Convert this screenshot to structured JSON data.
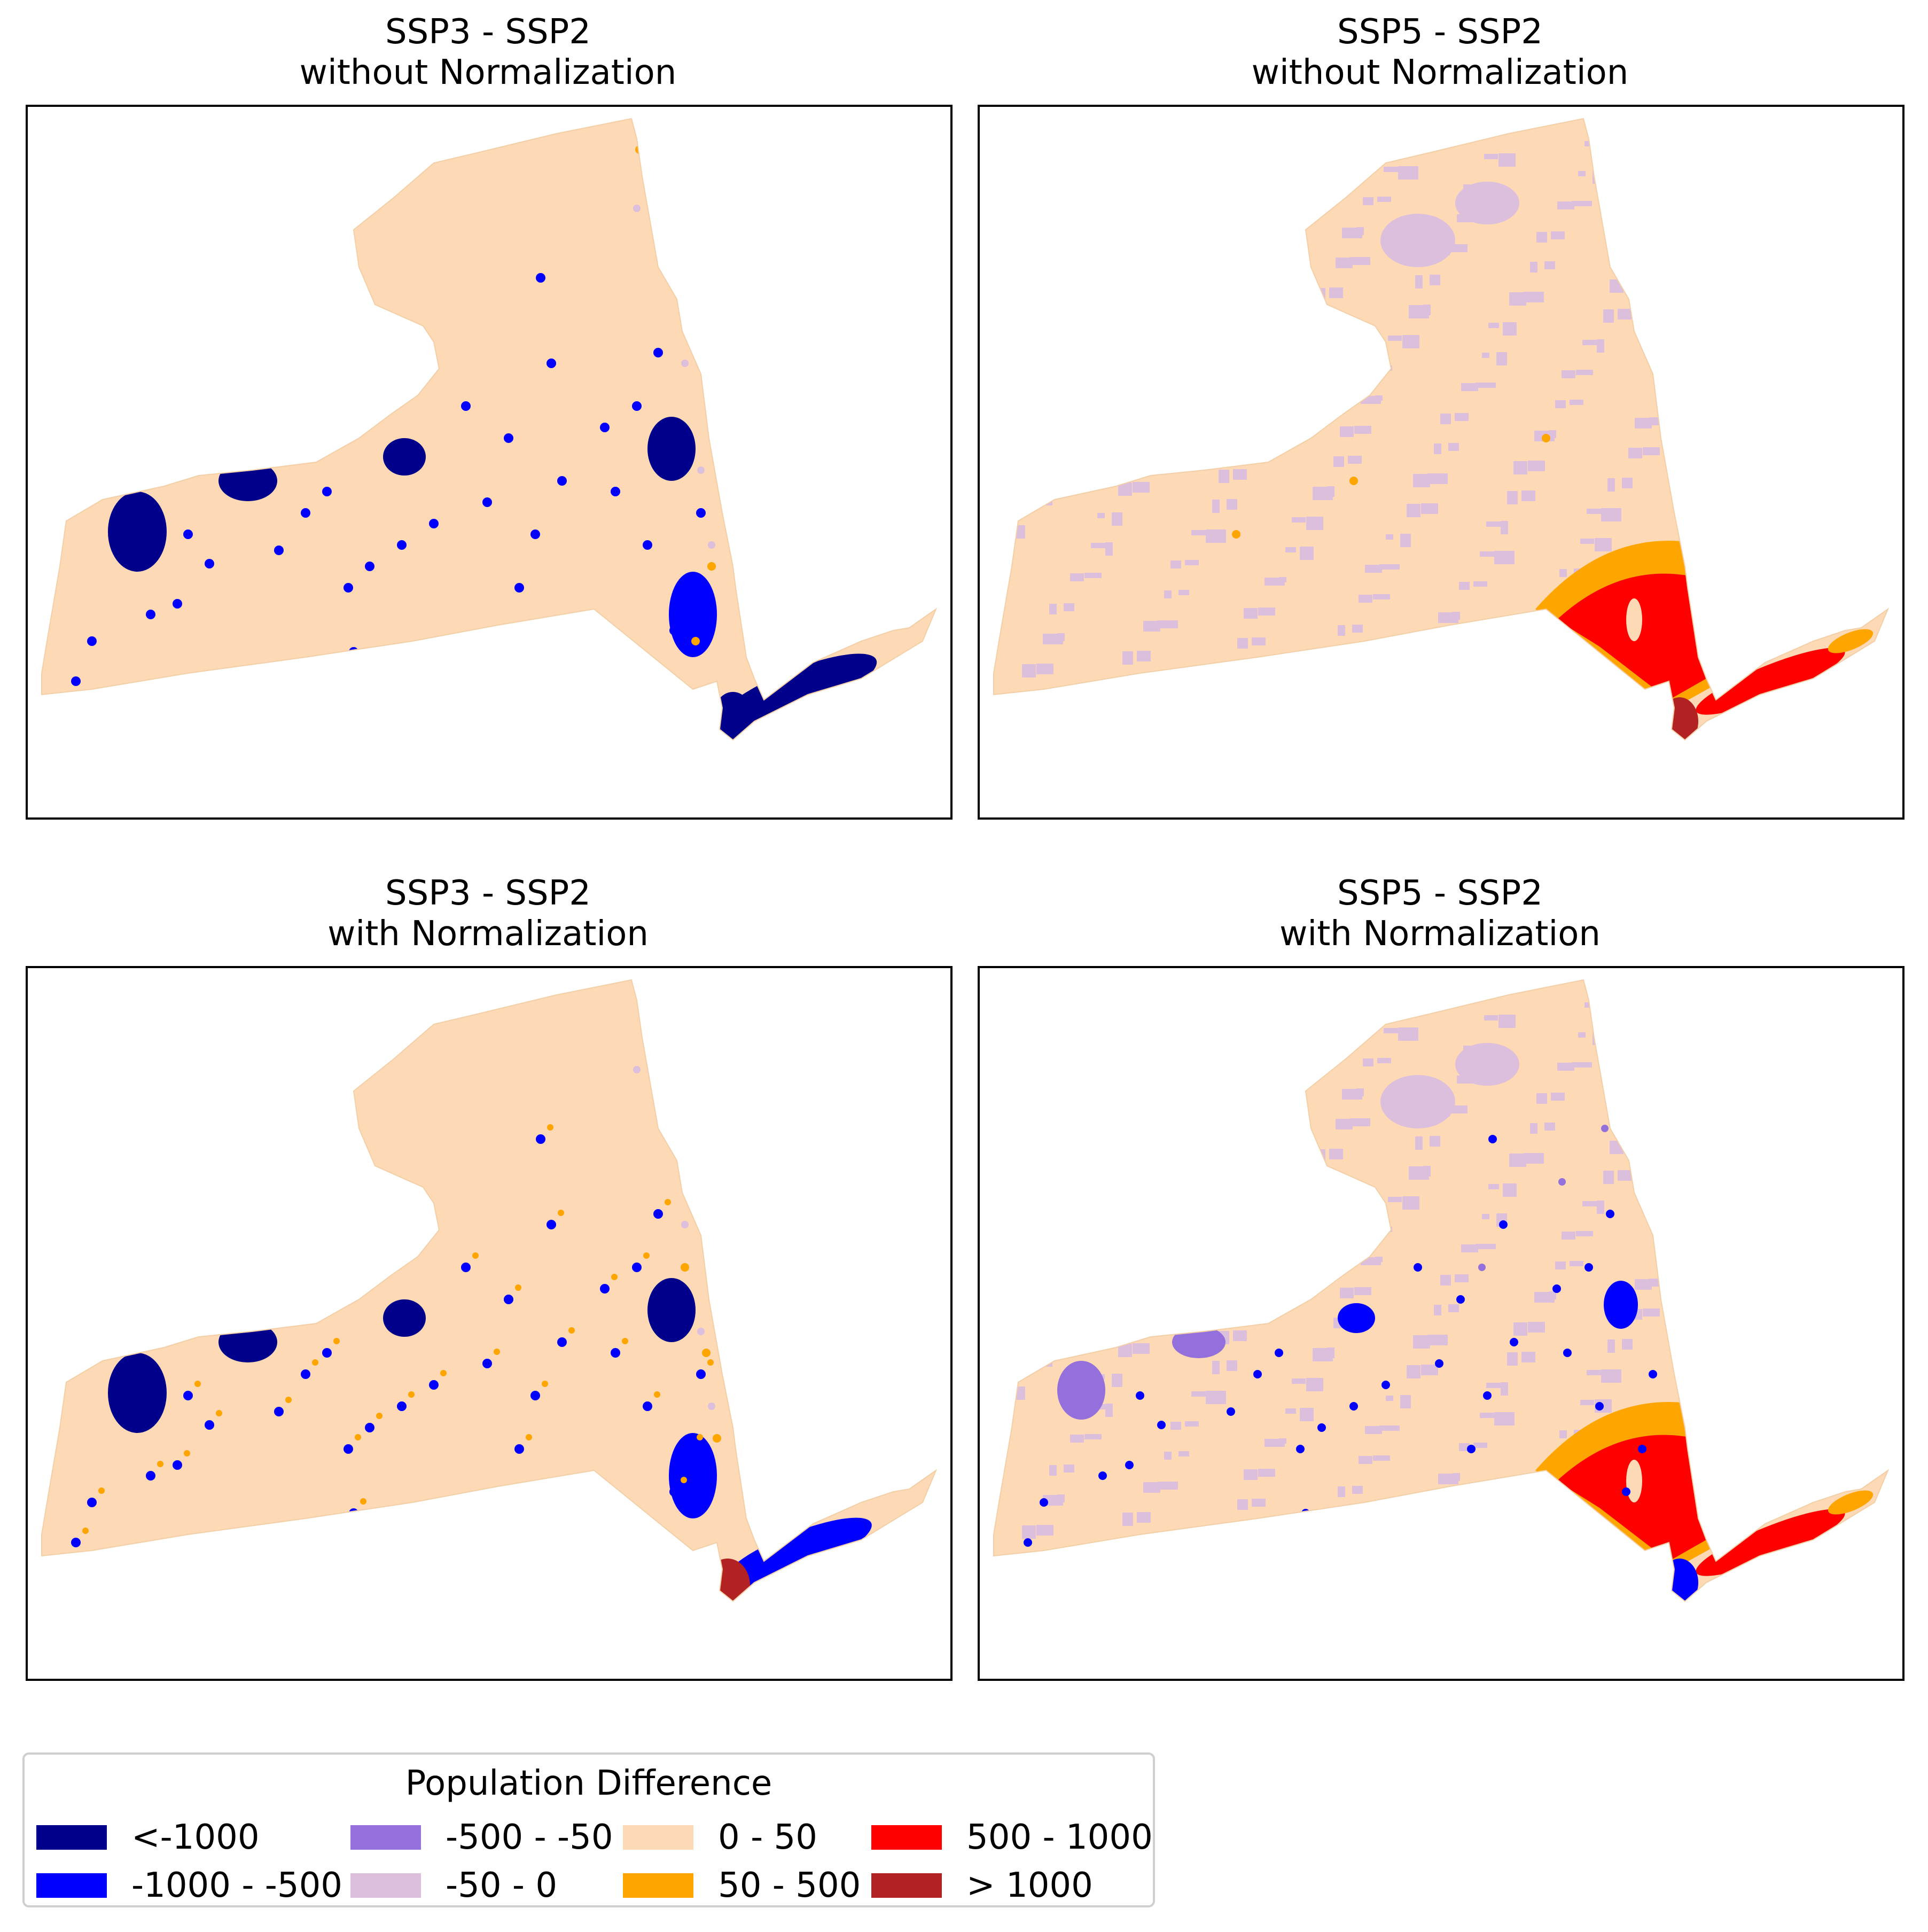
{
  "panels": [
    {
      "scenario": "SSP3 - SSP2",
      "mode": "without Normalization",
      "variant": "ssp3_raw"
    },
    {
      "scenario": "SSP5 - SSP2",
      "mode": "without Normalization",
      "variant": "ssp5_raw"
    },
    {
      "scenario": "SSP3 - SSP2",
      "mode": "with Normalization",
      "variant": "ssp3_norm"
    },
    {
      "scenario": "SSP5 - SSP2",
      "mode": "with Normalization",
      "variant": "ssp5_norm"
    }
  ],
  "legend": {
    "title": "Population Difference",
    "items": [
      {
        "label": "<-1000",
        "color": "#00008b"
      },
      {
        "label": "-1000 - -500",
        "color": "#0000ff"
      },
      {
        "label": "-500 - -50",
        "color": "#9370db"
      },
      {
        "label": "-50 - 0",
        "color": "#dcbedd"
      },
      {
        "label": "0 - 50",
        "color": "#fdd9b5"
      },
      {
        "label": "50 - 500",
        "color": "#ffa500"
      },
      {
        "label": "500 - 1000",
        "color": "#ff0000"
      },
      {
        "label": "> 1000",
        "color": "#b22222"
      }
    ]
  }
}
